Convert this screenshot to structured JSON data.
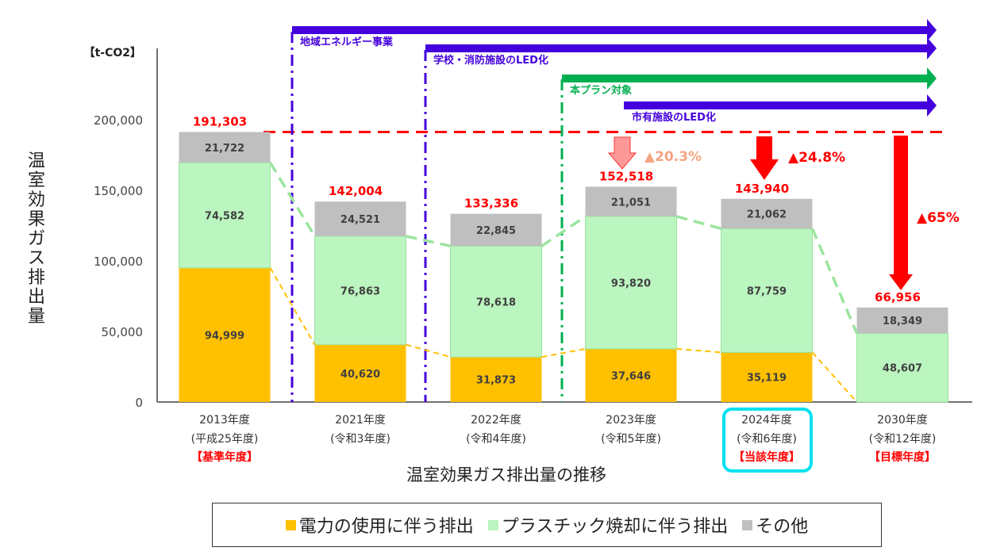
{
  "chart_data": {
    "type": "bar",
    "stacked": true,
    "title": "温室効果ガス排出量の推移",
    "ylabel": "温室効果ガス排出量",
    "unit": "【t-CO2】",
    "ylim": [
      0,
      200000
    ],
    "yticks": [
      "0",
      "50,000",
      "100,000",
      "150,000",
      "200,000"
    ],
    "categories": [
      {
        "year": "2013年度",
        "era": "(平成25年度)",
        "tag": "【基準年度】"
      },
      {
        "year": "2021年度",
        "era": "(令和3年度)",
        "tag": ""
      },
      {
        "year": "2022年度",
        "era": "(令和4年度)",
        "tag": ""
      },
      {
        "year": "2023年度",
        "era": "(令和5年度)",
        "tag": ""
      },
      {
        "year": "2024年度",
        "era": "(令和6年度)",
        "tag": "【当該年度】"
      },
      {
        "year": "2030年度",
        "era": "(令和12年度)",
        "tag": "【目標年度】"
      }
    ],
    "series": [
      {
        "name": "電力の使用に伴う排出",
        "color": "#FFC000",
        "values": [
          94999,
          40620,
          31873,
          37646,
          35119,
          0
        ],
        "labels": [
          "94,999",
          "40,620",
          "31,873",
          "37,646",
          "35,119",
          ""
        ]
      },
      {
        "name": "プラスチック焼却に伴う排出",
        "color": "#BBF5BF",
        "values": [
          74582,
          76863,
          78618,
          93820,
          87759,
          48607
        ],
        "labels": [
          "74,582",
          "76,863",
          "78,618",
          "93,820",
          "87,759",
          "48,607"
        ]
      },
      {
        "name": "その他",
        "color": "#BFBFBF",
        "values": [
          21722,
          24521,
          22845,
          21051,
          21062,
          18349
        ],
        "labels": [
          "21,722",
          "24,521",
          "22,845",
          "21,051",
          "21,062",
          "18,349"
        ]
      }
    ],
    "totals": [
      191303,
      142004,
      133336,
      152518,
      143940,
      66956
    ],
    "total_labels": [
      "191,303",
      "142,004",
      "133,336",
      "152,518",
      "143,940",
      "66,956"
    ],
    "reductions": [
      {
        "category": "2023年度",
        "label": "▲20.3%",
        "color": "#F4A582"
      },
      {
        "category": "2024年度",
        "label": "▲24.8%",
        "color": "#FF0000"
      },
      {
        "category": "2030年度",
        "label": "▲65%",
        "color": "#FF0000"
      }
    ],
    "baseline_line": {
      "value": 191303,
      "color": "#FF0000",
      "style": "dashed"
    },
    "initiatives": [
      {
        "label": "地域エネルギー事業",
        "color": "#4400DD",
        "start_after": "2013年度"
      },
      {
        "label": "学校・消防施設のLED化",
        "color": "#4400DD",
        "start_after": "2021年度"
      },
      {
        "label": "本プラン対象",
        "color": "#00B050",
        "start_after": "2022年度"
      },
      {
        "label": "市有施設のLED化",
        "color": "#4400DD",
        "start_after": "2023年度"
      }
    ],
    "highlight_category": "2024年度",
    "legend_position": "bottom"
  },
  "legend": {
    "items": [
      {
        "label": "電力の使用に伴う排出",
        "color": "#FFC000"
      },
      {
        "label": "プラスチック焼却に伴う排出",
        "color": "#BBF5BF"
      },
      {
        "label": "その他",
        "color": "#BFBFBF"
      }
    ]
  }
}
